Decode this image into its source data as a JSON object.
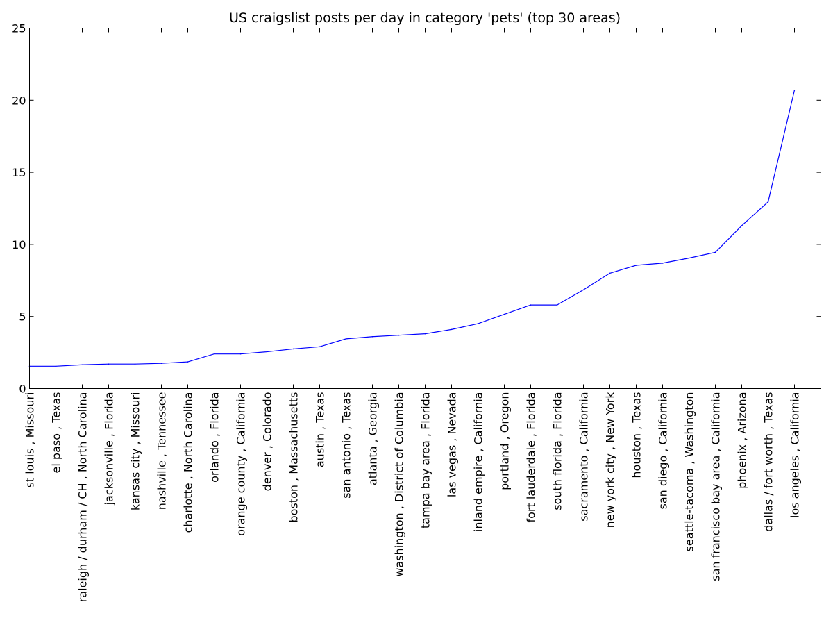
{
  "chart_data": {
    "type": "line",
    "title": "US craigslist posts per day in category 'pets' (top 30 areas)",
    "xlabel": "",
    "ylabel": "",
    "ylim": [
      0,
      25
    ],
    "yticks": [
      0,
      5,
      10,
      15,
      20,
      25
    ],
    "grid": false,
    "legend": "none",
    "categories": [
      "st louis , Missouri",
      "el paso , Texas",
      "raleigh / durham / CH , North Carolina",
      "jacksonville , Florida",
      "kansas city , Missouri",
      "nashville , Tennessee",
      "charlotte , North Carolina",
      "orlando , Florida",
      "orange county , California",
      "denver , Colorado",
      "boston , Massachusetts",
      "austin , Texas",
      "san antonio , Texas",
      "atlanta , Georgia",
      "washington , District of Columbia",
      "tampa bay area , Florida",
      "las vegas , Nevada",
      "inland empire , California",
      "portland , Oregon",
      "fort lauderdale , Florida",
      "south florida , Florida",
      "sacramento , California",
      "new york city , New York",
      "houston , Texas",
      "san diego , California",
      "seattle-tacoma , Washington",
      "san francisco bay area , California",
      "phoenix , Arizona",
      "dallas / fort worth , Texas",
      "los angeles , California"
    ],
    "series": [
      {
        "color": "#0000ff",
        "values": [
          1.55,
          1.55,
          1.65,
          1.7,
          1.7,
          1.75,
          1.85,
          2.4,
          2.4,
          2.55,
          2.75,
          2.9,
          3.45,
          3.6,
          3.7,
          3.8,
          4.1,
          4.5,
          5.15,
          5.8,
          5.8,
          6.85,
          8.0,
          8.55,
          8.7,
          9.05,
          9.45,
          11.3,
          12.95,
          20.7
        ]
      }
    ]
  }
}
